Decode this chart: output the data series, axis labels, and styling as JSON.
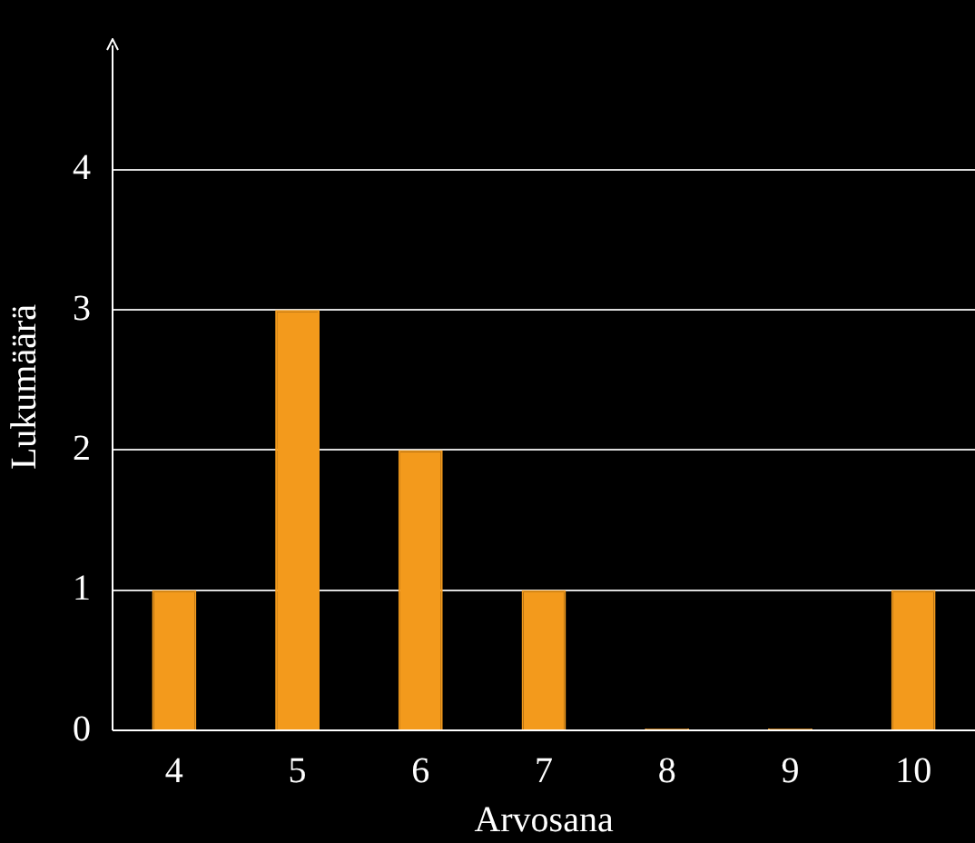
{
  "chart_data": {
    "type": "bar",
    "xlabel": "Arvosana",
    "ylabel": "Lukumäärä",
    "categories": [
      "4",
      "5",
      "6",
      "7",
      "8",
      "9",
      "10"
    ],
    "values": [
      1,
      3,
      2,
      1,
      0,
      0,
      1
    ],
    "color": "#f39a1c",
    "ylim": [
      0,
      4.9
    ],
    "yticks": [
      0,
      1,
      2,
      3,
      4
    ],
    "grid": "y"
  }
}
